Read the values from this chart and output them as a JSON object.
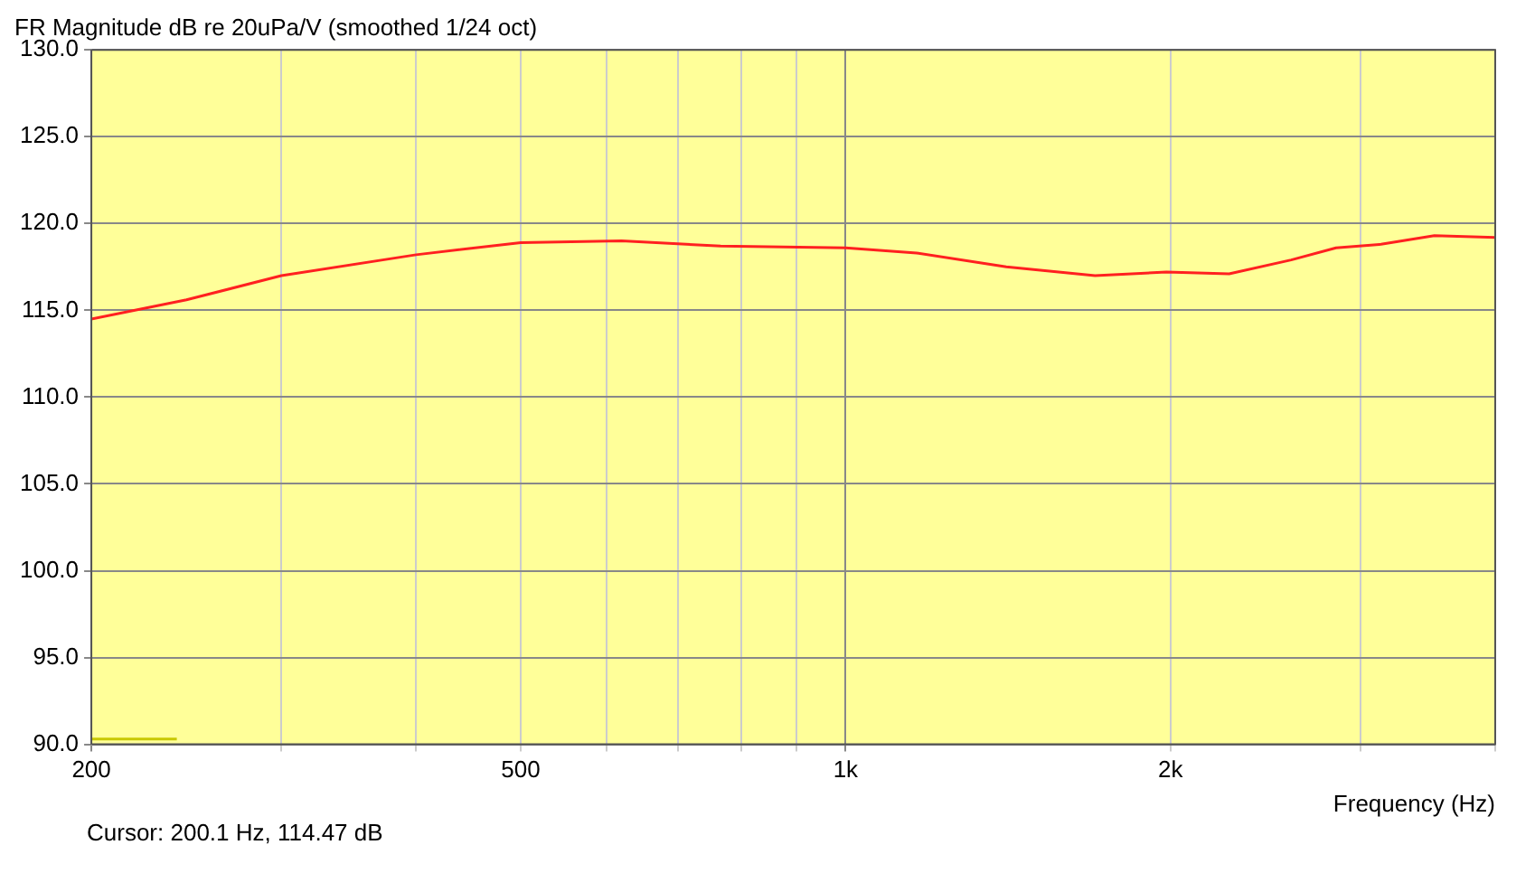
{
  "chart_data": {
    "type": "line",
    "title": "FR Magnitude dB re 20uPa/V (smoothed 1/24 oct)",
    "xlabel": "Frequency (Hz)",
    "annotations": [
      "Cursor: 200.1 Hz, 114.47 dB"
    ],
    "log": "x",
    "grid": true,
    "legend": false,
    "marker": "none",
    "line_style": "solid",
    "series": [
      {
        "color": "#ff2020",
        "x": [
          200,
          245,
          300,
          400,
          500,
          620,
          766,
          1000,
          1164,
          1409,
          1703,
          1983,
          2267,
          2588,
          2848,
          3135,
          3513,
          4000
        ],
        "values": [
          114.5,
          115.6,
          117.0,
          118.2,
          118.9,
          119.0,
          118.7,
          118.6,
          118.3,
          117.5,
          117.0,
          117.2,
          117.1,
          117.9,
          118.6,
          118.8,
          119.3,
          119.2
        ]
      },
      {
        "color": "#c8c800",
        "x": [
          200,
          240
        ],
        "values": [
          90.3,
          90.3
        ]
      }
    ],
    "xlim": [
      200,
      4000
    ],
    "xticks": [
      200,
      {
        "value": 300,
        "label": null
      },
      {
        "value": 400,
        "label": null
      },
      500,
      {
        "value": 600,
        "label": null
      },
      {
        "value": 700,
        "label": null
      },
      {
        "value": 800,
        "label": null
      },
      {
        "value": 900,
        "label": null
      },
      {
        "value": 1000,
        "label": "1k"
      },
      {
        "value": 2000,
        "label": "2k"
      },
      {
        "value": 3000,
        "label": null
      },
      {
        "value": 4000,
        "label": null
      }
    ],
    "ylim": [
      90,
      130
    ],
    "yticks": [
      {
        "value": 90,
        "label": "90.0"
      },
      {
        "value": 95,
        "label": "95.0"
      },
      {
        "value": 100,
        "label": "100.0"
      },
      {
        "value": 105,
        "label": "105.0"
      },
      {
        "value": 110,
        "label": "110.0"
      },
      {
        "value": 115,
        "label": "115.0"
      },
      {
        "value": 120,
        "label": "120.0"
      },
      {
        "value": 125,
        "label": "125.0"
      },
      {
        "value": 130,
        "label": "130.0"
      }
    ]
  }
}
